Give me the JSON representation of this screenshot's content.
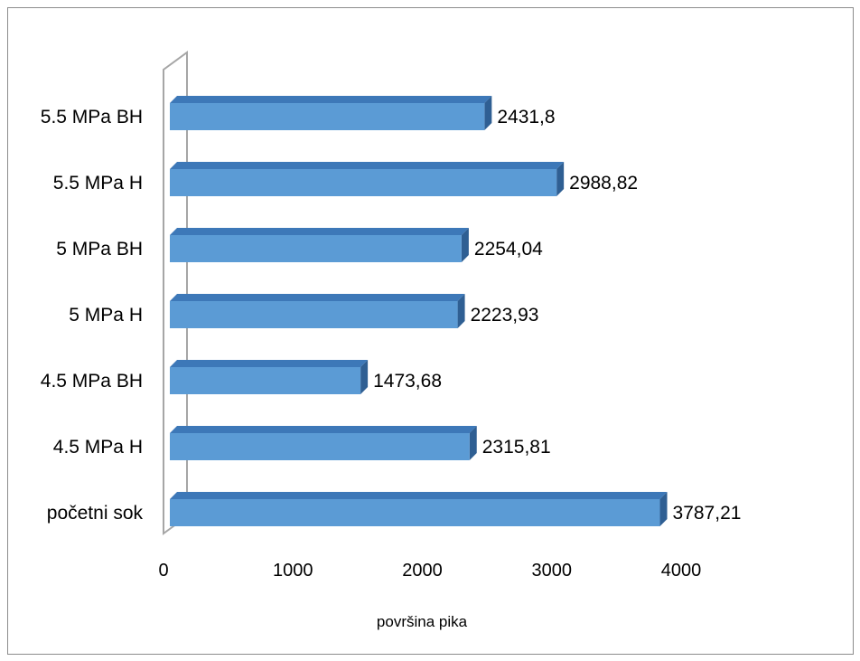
{
  "chart_data": {
    "type": "bar",
    "orientation": "horizontal",
    "style": "3d-clustered-bar",
    "categories": [
      "početni sok",
      "4.5 MPa H",
      "4.5 MPa BH",
      "5 MPa H",
      "5 MPa BH",
      "5.5 MPa H",
      "5.5 MPa BH"
    ],
    "values": [
      3787.21,
      2315.81,
      1473.68,
      2223.93,
      2254.04,
      2988.82,
      2431.8
    ],
    "data_labels": [
      "3787,21",
      "2315,81",
      "1473,68",
      "2223,93",
      "2254,04",
      "2988,82",
      "2431,8"
    ],
    "xlabel": "površina pika",
    "ylabel": "",
    "xlim": [
      0,
      4000
    ],
    "xticks": [
      "0",
      "1000",
      "2000",
      "3000",
      "4000"
    ],
    "grid": false,
    "legend": "none",
    "colors": {
      "bar_front": "#5b9bd5",
      "bar_top": "#3d78b8",
      "bar_side": "#2f5f93",
      "axis_wall": "#a6a6a6",
      "frame": "#8c8c8c"
    }
  }
}
